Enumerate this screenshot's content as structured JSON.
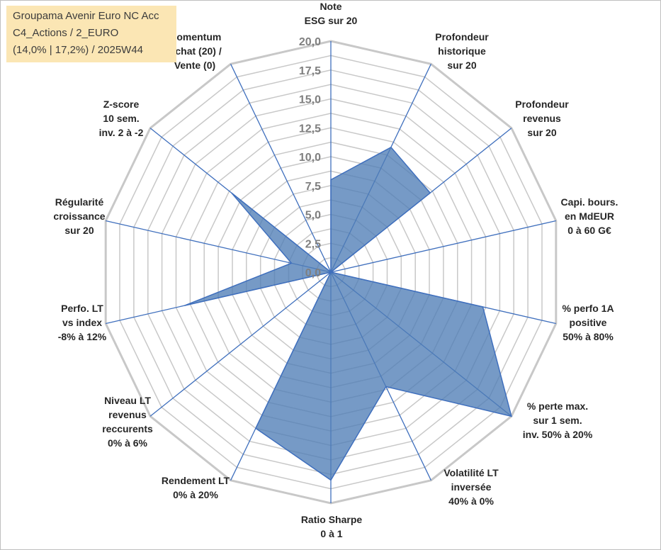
{
  "title_box": {
    "line1": "Groupama Avenir Euro NC Acc",
    "line2": "C4_Actions / 2_EURO",
    "line3": "(14,0% | 17,2%) / 2025W44"
  },
  "colors": {
    "fill": "#4f7eb6",
    "axis": "#3f6fbd",
    "grid": "#c8c8c8",
    "title_bg": "#fbe6b4"
  },
  "chart_data": {
    "type": "radar",
    "rmin": 0,
    "rmax": 20,
    "grid_step": 1.25,
    "tick_labels": [
      "0,0",
      "2,5",
      "5,0",
      "7,5",
      "10,0",
      "12,5",
      "15,0",
      "17,5",
      "20,0"
    ],
    "tick_values": [
      0,
      2.5,
      5,
      7.5,
      10,
      12.5,
      15,
      17.5,
      20
    ],
    "axes": [
      {
        "label": [
          "Note",
          "ESG sur 20"
        ],
        "value": 8.0
      },
      {
        "label": [
          "Profondeur",
          "historique",
          "sur 20"
        ],
        "value": 12.0
      },
      {
        "label": [
          "Profondeur",
          "revenus",
          "sur 20"
        ],
        "value": 11.0
      },
      {
        "label": [
          "Capi. bours.",
          "en MdEUR",
          "0 à 60 G€"
        ],
        "value": 0.0
      },
      {
        "label": [
          "% perfo 1A",
          "positive",
          "50% à 80%"
        ],
        "value": 13.5
      },
      {
        "label": [
          "% perte max.",
          "sur 1 sem.",
          "inv. 50% à 20%"
        ],
        "value": 20.0
      },
      {
        "label": [
          "Volatilité LT",
          "inversée",
          "40% à 0%"
        ],
        "value": 11.0
      },
      {
        "label": [
          "Ratio Sharpe",
          "0 à 1"
        ],
        "value": 18.0
      },
      {
        "label": [
          "Rendement LT",
          "0% à 20%"
        ],
        "value": 15.0
      },
      {
        "label": [
          "Niveau LT",
          "revenus",
          "reccurents",
          "0% à 6%"
        ],
        "value": 0.0
      },
      {
        "label": [
          "Perfo. LT",
          "vs index",
          "-8% à 12%"
        ],
        "value": 13.0
      },
      {
        "label": [
          "Régularité",
          "croissance",
          "sur 20"
        ],
        "value": 3.5
      },
      {
        "label": [
          "Z-score",
          "10 sem.",
          "inv. 2 à -2"
        ],
        "value": 11.0
      },
      {
        "label": [
          "Momentum",
          "Achat (20) /",
          "Vente (0)"
        ],
        "value": 0.0
      }
    ]
  }
}
